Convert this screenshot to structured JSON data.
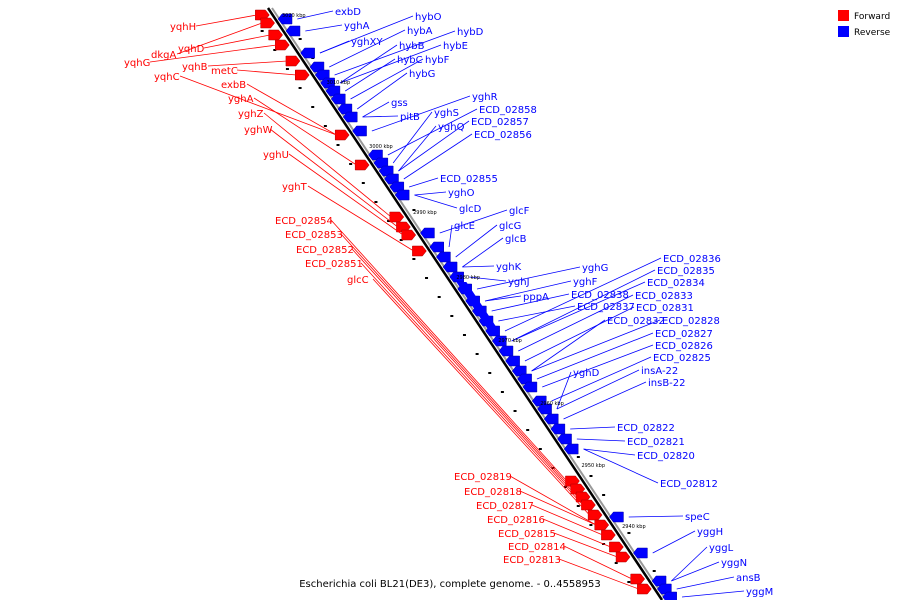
{
  "caption": "Escherichia coli BL21(DE3), complete genome. - 0..4558953",
  "legend": [
    {
      "label": "Forward",
      "color": "#ff0000"
    },
    {
      "label": "Reverse",
      "color": "#0000ff"
    }
  ],
  "colors": {
    "forward": "#ff0000",
    "reverse": "#0000ff",
    "backbone": "#000000"
  },
  "ticks": [
    "3020 kbp",
    "3010 kbp",
    "3000 kbp",
    "2990 kbp",
    "2980 kbp",
    "2970 kbp",
    "2960 kbp",
    "2950 kbp",
    "2940 kbp"
  ],
  "labels_forward": [
    "yqhH",
    "dkgA",
    "yqhD",
    "yqhG",
    "yqhB",
    "metC",
    "yqhC",
    "exbB",
    "yghA",
    "yghZ",
    "yghW",
    "yghU",
    "yghT",
    "ECD_02854",
    "ECD_02853",
    "ECD_02852",
    "ECD_02851",
    "glcC",
    "ECD_02819",
    "ECD_02818",
    "ECD_02817",
    "ECD_02816",
    "ECD_02815",
    "ECD_02814",
    "ECD_02813"
  ],
  "labels_reverse": [
    "exbD",
    "yghA",
    "yghXY",
    "hybO",
    "hybA",
    "hybD",
    "hybB",
    "hybE",
    "hybC",
    "hybF",
    "hybG",
    "gss",
    "pitB",
    "yghR",
    "ECD_02858",
    "yghS",
    "ECD_02857",
    "yghQ",
    "ECD_02856",
    "ECD_02855",
    "yghO",
    "glcD",
    "glcF",
    "glcE",
    "glcG",
    "glcB",
    "yghK",
    "yghJ",
    "yghG",
    "yghF",
    "pppA",
    "ECD_02838",
    "ECD_02837",
    "ECD_02836",
    "ECD_02835",
    "ECD_02834",
    "ECD_02833",
    "ECD_02831",
    "ECD_02832",
    "ECD_02828",
    "ECD_02827",
    "ECD_02826",
    "ECD_02825",
    "yghD",
    "insA-22",
    "insB-22",
    "ECD_02822",
    "ECD_02821",
    "ECD_02820",
    "ECD_02812",
    "speC",
    "yggH",
    "yggL",
    "yggN",
    "ansB",
    "yggM"
  ]
}
